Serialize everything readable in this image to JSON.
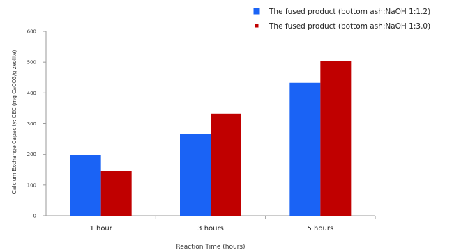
{
  "chart_data": {
    "type": "bar",
    "categories": [
      "1 hour",
      "3 hours",
      "5 hours"
    ],
    "series": [
      {
        "name": "The fused product (bottom ash:NaOH 1:1.2)",
        "color": "#1a63f5",
        "values": [
          198,
          267,
          433
        ]
      },
      {
        "name": "The fused product (bottom ash:NaOH 1:3.0)",
        "color": "#c00000",
        "values": [
          146,
          331,
          503
        ]
      }
    ],
    "xlabel": "Reaction Time (hours)",
    "ylabel": "Calcium Exchange Capacity: CEC    (mg CaCO3/g zeolite)",
    "ylim": [
      0,
      600
    ],
    "yticks": [
      0,
      100,
      200,
      300,
      400,
      500,
      600
    ],
    "grid": false,
    "legend": "top-right"
  }
}
